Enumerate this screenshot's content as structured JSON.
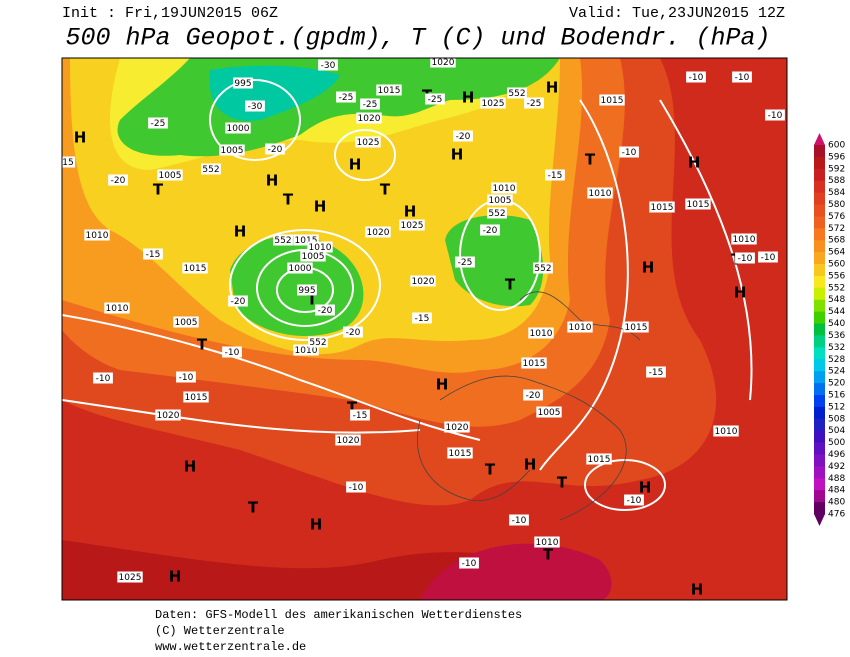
{
  "header": {
    "init": "Init : Fri,19JUN2015 06Z",
    "valid": "Valid: Tue,23JUN2015 12Z",
    "title": "500 hPa Geopot.(gpdm), T (C) und Bodendr. (hPa)"
  },
  "footer": {
    "source": "Daten: GFS-Modell des amerikanischen Wetterdienstes",
    "copyright": "(C) Wetterzentrale",
    "url": "www.wetterzentrale.de"
  },
  "legend": {
    "levels": [
      "600",
      "596",
      "592",
      "588",
      "584",
      "580",
      "576",
      "572",
      "568",
      "564",
      "560",
      "556",
      "552",
      "548",
      "544",
      "540",
      "536",
      "532",
      "528",
      "524",
      "520",
      "516",
      "512",
      "508",
      "504",
      "500",
      "496",
      "492",
      "488",
      "484",
      "480",
      "476"
    ],
    "colors": [
      "#d0106a",
      "#a8102a",
      "#b81818",
      "#c82020",
      "#d83020",
      "#e04020",
      "#e85020",
      "#f06020",
      "#f87820",
      "#f89020",
      "#f8a820",
      "#f8c820",
      "#f8e820",
      "#c8f000",
      "#80e000",
      "#40d000",
      "#00c040",
      "#00d080",
      "#00e0c0",
      "#00c8e8",
      "#00a0f0",
      "#0070f0",
      "#0040f0",
      "#0020d0",
      "#2020c0",
      "#4010c0",
      "#6010c0",
      "#8010c0",
      "#a010c0",
      "#c010c0",
      "#a00890",
      "#600060"
    ]
  },
  "map_labels": [
    "H",
    "T",
    "H",
    "H",
    "T",
    "H",
    "H",
    "T",
    "H",
    "H",
    "H",
    "H",
    "T",
    "H",
    "H",
    "T",
    "H",
    "T",
    "T",
    "H",
    "T",
    "H",
    "T",
    "H",
    "T",
    "H",
    "T",
    "H",
    "T",
    "H",
    "H",
    "T",
    "T",
    "1015",
    "995",
    "1000",
    "1005",
    "1020",
    "1025",
    "1005",
    "1010",
    "1015",
    "1015",
    "1010",
    "1005",
    "1000",
    "995",
    "1010",
    "1005",
    "1010",
    "1015",
    "1020",
    "1020",
    "1020",
    "1025",
    "1020",
    "1025",
    "1015",
    "1010",
    "1005",
    "1010",
    "1015",
    "1015",
    "1010",
    "1010",
    "1010",
    "1015",
    "1015",
    "1005",
    "1010",
    "1020",
    "1015",
    "1015",
    "1010",
    "1025",
    "1020",
    "-30",
    "-30",
    "-25",
    "-20",
    "-20",
    "552",
    "-25",
    "-25",
    "-25",
    "552",
    "-25",
    "-20",
    "-15",
    "-10",
    "-10",
    "-10",
    "-15",
    "-20",
    "-20",
    "-20",
    "552",
    "-20",
    "552",
    "-25",
    "552",
    "-15",
    "-10",
    "552",
    "-10",
    "-10",
    "-15",
    "-20",
    "-15",
    "-10",
    "-10",
    "-10",
    "-10",
    "-10",
    "-10",
    "-10",
    "15"
  ]
}
